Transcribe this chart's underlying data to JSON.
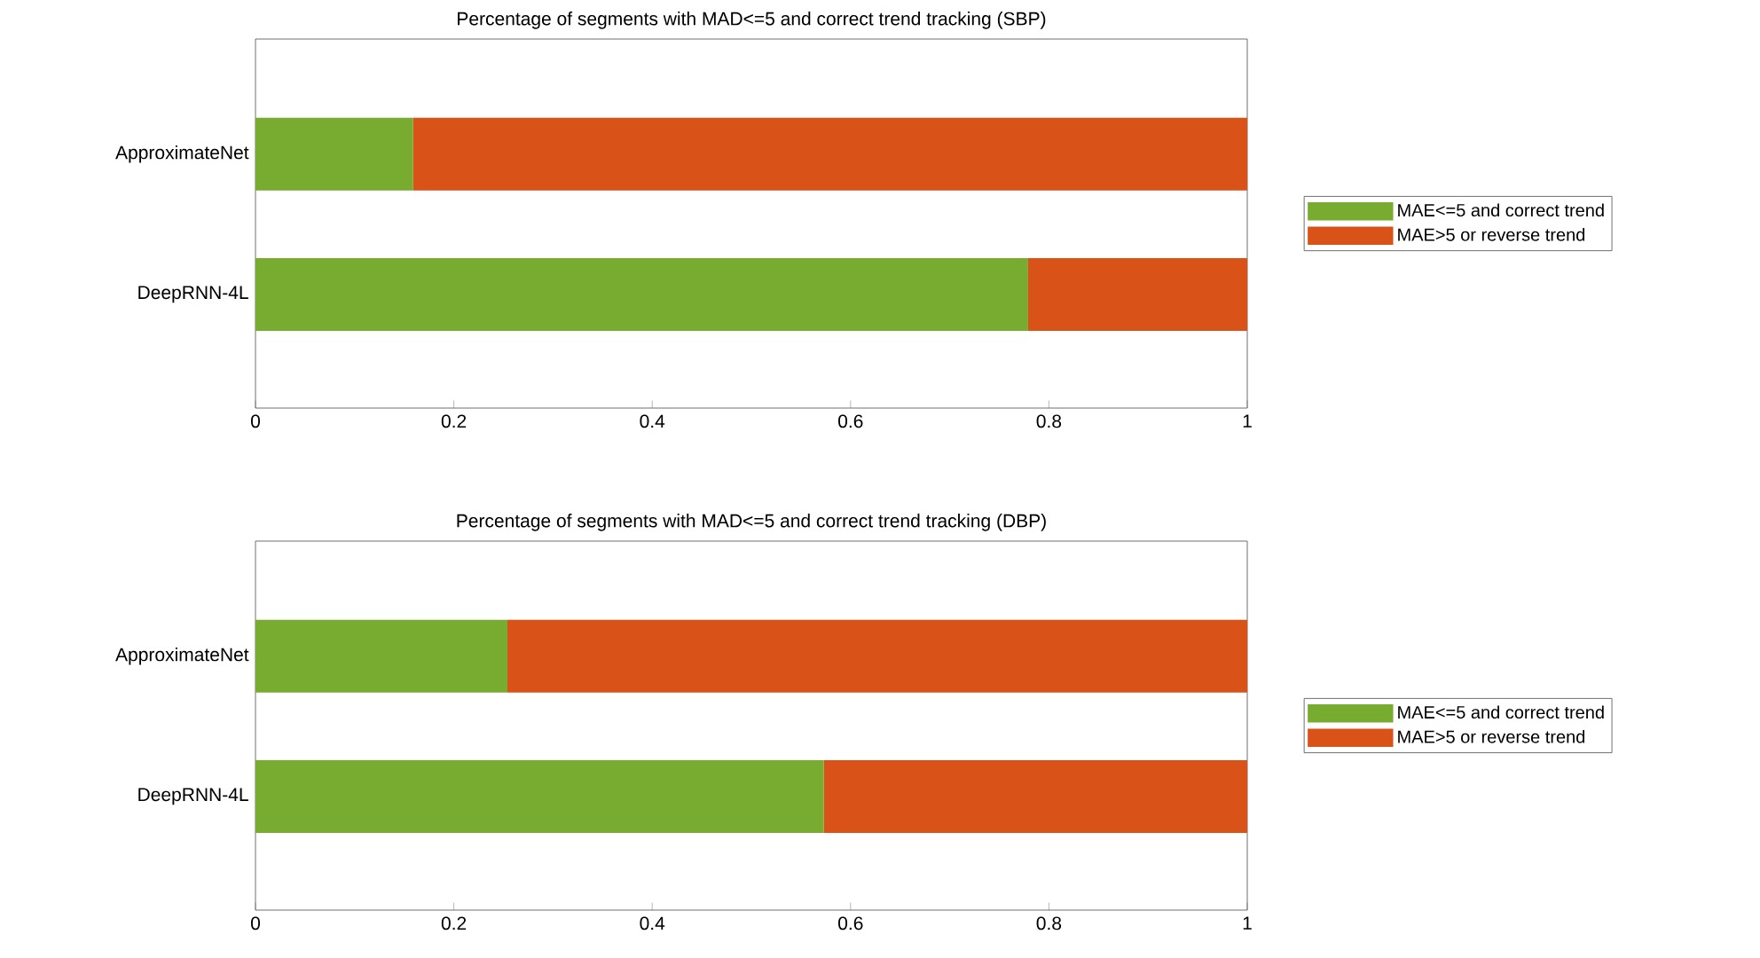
{
  "chart_data": [
    {
      "type": "bar",
      "orientation": "horizontal",
      "stacked": true,
      "title": "Percentage of segments with MAD<=5 and correct trend tracking (SBP)",
      "categories": [
        "ApproximateNet",
        "DeepRNN-4L"
      ],
      "series": [
        {
          "name": "MAE<=5 and correct trend",
          "color": "#77ac30",
          "values": [
            0.159,
            0.779
          ]
        },
        {
          "name": "MAE>5 or reverse trend",
          "color": "#d95319",
          "values": [
            0.841,
            0.221
          ]
        }
      ],
      "xlim": [
        0,
        1
      ],
      "xticks": [
        0,
        0.2,
        0.4,
        0.6,
        0.8,
        1
      ],
      "legend": "right"
    },
    {
      "type": "bar",
      "orientation": "horizontal",
      "stacked": true,
      "title": "Percentage of segments with MAD<=5 and correct trend tracking (DBP)",
      "categories": [
        "ApproximateNet",
        "DeepRNN-4L"
      ],
      "series": [
        {
          "name": "MAE<=5 and correct trend",
          "color": "#77ac30",
          "values": [
            0.254,
            0.573
          ]
        },
        {
          "name": "MAE>5 or reverse trend",
          "color": "#d95319",
          "values": [
            0.746,
            0.427
          ]
        }
      ],
      "xlim": [
        0,
        1
      ],
      "xticks": [
        0,
        0.2,
        0.4,
        0.6,
        0.8,
        1
      ],
      "legend": "right"
    }
  ]
}
